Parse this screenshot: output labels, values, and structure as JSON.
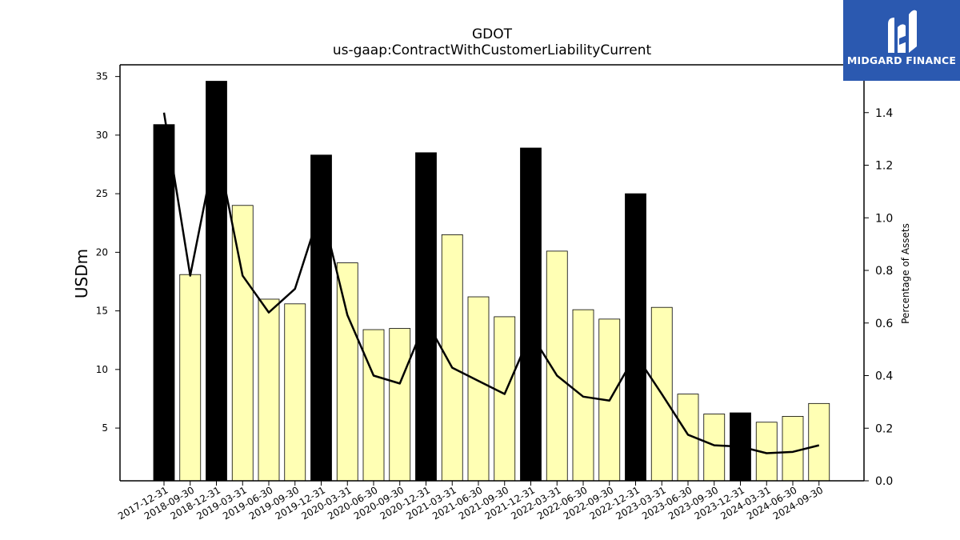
{
  "chart_data": {
    "type": "bar",
    "title": "GDOT",
    "subtitle": "us-gaap:ContractWithCustomerLiabilityCurrent",
    "ylabel": "USDm",
    "y2label": "Percentage of Assets",
    "ylim": [
      0.5,
      36
    ],
    "y2lim": [
      0,
      1.5818
    ],
    "yticks": [
      5,
      10,
      15,
      20,
      25,
      30,
      35
    ],
    "y2ticks": [
      0.0,
      0.2,
      0.4,
      0.6,
      0.8,
      1.0,
      1.2,
      1.4
    ],
    "categories": [
      "2017-12-31",
      "2018-09-30",
      "2018-12-31",
      "2019-03-31",
      "2019-06-30",
      "2019-09-30",
      "2019-12-31",
      "2020-03-31",
      "2020-06-30",
      "2020-09-30",
      "2020-12-31",
      "2021-03-31",
      "2021-06-30",
      "2021-09-30",
      "2021-12-31",
      "2022-03-31",
      "2022-06-30",
      "2022-09-30",
      "2022-12-31",
      "2023-03-31",
      "2023-06-30",
      "2023-09-30",
      "2023-12-31",
      "2024-03-31",
      "2024-06-30",
      "2024-09-30"
    ],
    "series": [
      {
        "kind": "bar",
        "values": [
          30.9,
          18.1,
          34.6,
          24.0,
          16.0,
          15.6,
          28.3,
          19.1,
          13.4,
          13.5,
          28.5,
          21.5,
          16.2,
          14.5,
          28.9,
          20.1,
          15.1,
          14.3,
          25.0,
          15.3,
          7.9,
          6.2,
          6.3,
          5.5,
          6.0,
          7.1
        ],
        "annual_color": "#000000",
        "quarter_color": "#ffffb4"
      },
      {
        "kind": "line",
        "axis": "right",
        "color": "#000000",
        "values": [
          1.4,
          0.78,
          1.28,
          0.78,
          0.64,
          0.73,
          1.04,
          0.63,
          0.4,
          0.37,
          0.61,
          0.43,
          0.38,
          0.33,
          0.56,
          0.4,
          0.32,
          0.305,
          0.48,
          0.33,
          0.175,
          0.135,
          0.13,
          0.105,
          0.11,
          0.135
        ]
      }
    ],
    "annual_flags": [
      true,
      false,
      true,
      false,
      false,
      false,
      true,
      false,
      false,
      false,
      true,
      false,
      false,
      false,
      true,
      false,
      false,
      false,
      true,
      false,
      false,
      false,
      true,
      false,
      false,
      false
    ],
    "grid": false
  },
  "logo": {
    "text": "MIDGARD FINANCE",
    "background": "#2b59b0"
  }
}
